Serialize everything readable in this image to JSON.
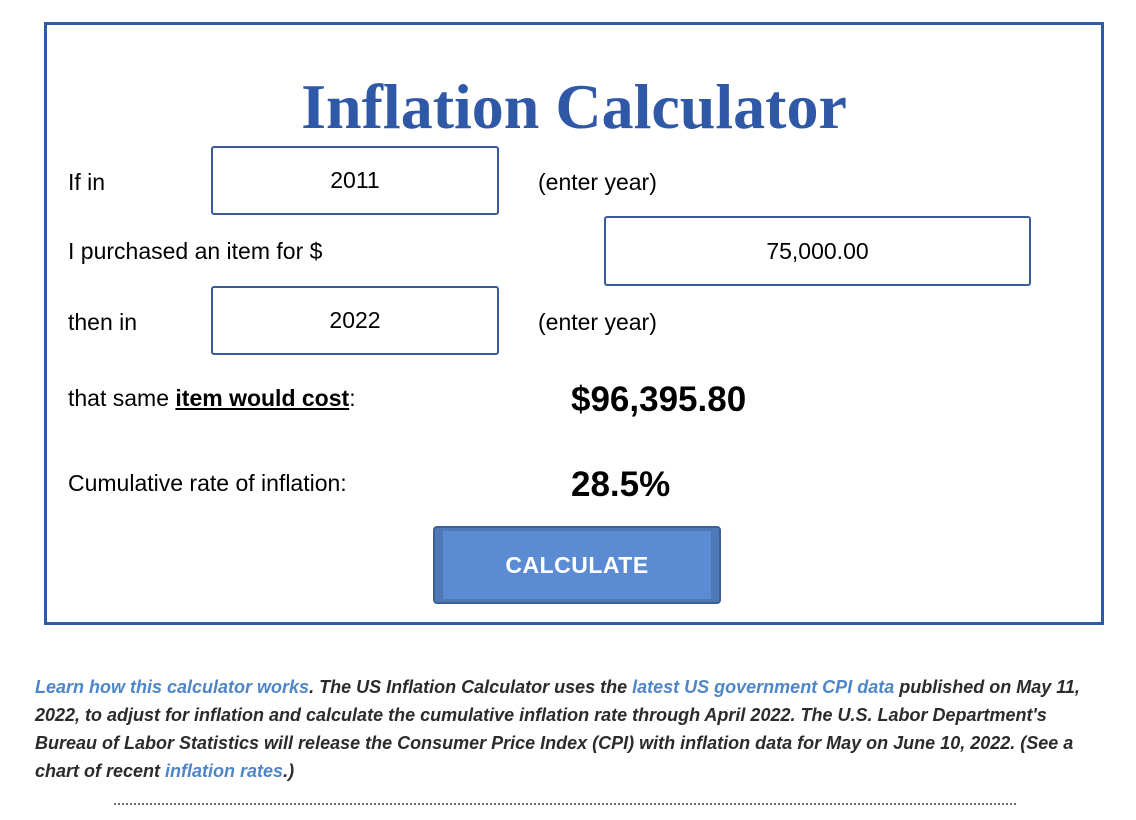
{
  "calculator": {
    "title": "Inflation Calculator",
    "rows": {
      "start_label": "If in",
      "start_year": "2011",
      "start_hint": "(enter year)",
      "amount_label": "I purchased an item for $",
      "amount_value": "75,000.00",
      "end_label": "then in",
      "end_year": "2022",
      "end_hint": "(enter year)",
      "cost_label_prefix": "that same ",
      "cost_label_emphasis": "item would cost",
      "cost_label_suffix": ":",
      "cost_value": "$96,395.80",
      "rate_label": "Cumulative rate of inflation:",
      "rate_value": "28.5%"
    },
    "button_label": "CALCULATE"
  },
  "info": {
    "learn_link": "Learn how this calculator works",
    "text_1": ". The US Inflation Calculator uses the ",
    "cpi_link": "latest US government CPI data",
    "text_2": " published on May 11, 2022, to adjust for inflation and calculate the cumulative inflation rate through April 2022. The U.S. Labor Department's Bureau of Labor Statistics will release the Consumer Price Index (CPI) with inflation data for May on June 10, 2022. (See a chart of recent ",
    "rates_link": "inflation rates",
    "text_3": ".)"
  },
  "colors": {
    "title": "#2f58a6",
    "box_border": "#2f5aa5",
    "button": "#5b8bd2",
    "link": "#4e86c8"
  }
}
